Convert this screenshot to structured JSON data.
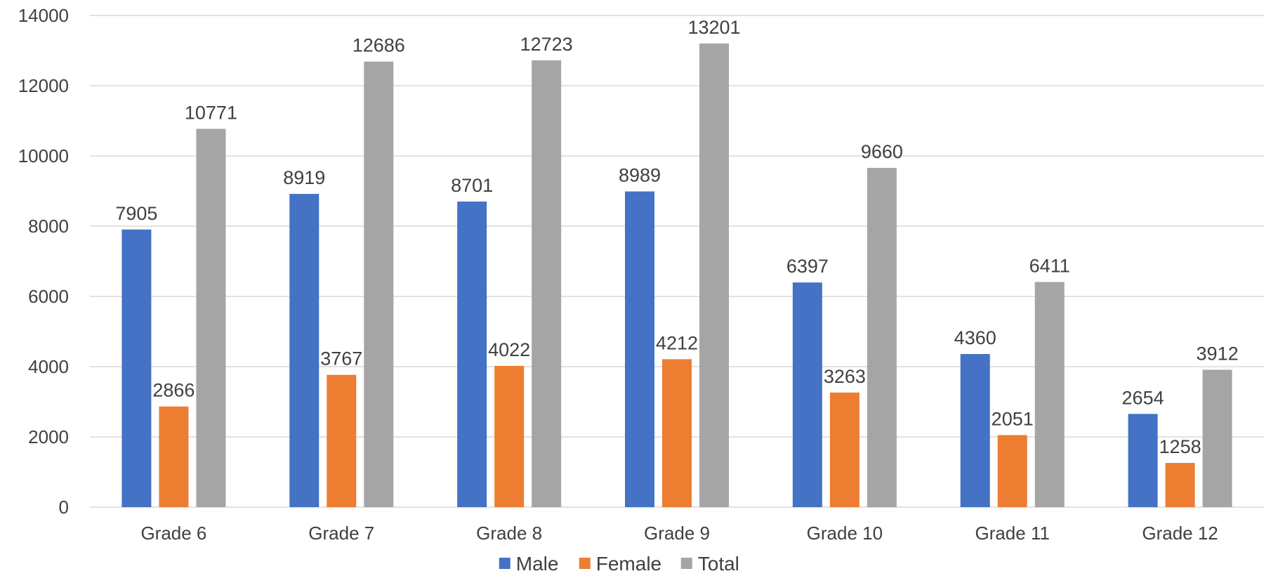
{
  "chart_data": {
    "type": "bar",
    "categories": [
      "Grade 6",
      "Grade 7",
      "Grade 8",
      "Grade 9",
      "Grade 10",
      "Grade 11",
      "Grade 12"
    ],
    "series": [
      {
        "name": "Male",
        "color": "#4472c4",
        "values": [
          7905,
          8919,
          8701,
          8989,
          6397,
          4360,
          2654
        ]
      },
      {
        "name": "Female",
        "color": "#ed7d31",
        "values": [
          2866,
          3767,
          4022,
          4212,
          3263,
          2051,
          1258
        ]
      },
      {
        "name": "Total",
        "color": "#a5a5a5",
        "values": [
          10771,
          12686,
          12723,
          13201,
          9660,
          6411,
          3912
        ]
      }
    ],
    "title": "",
    "xlabel": "",
    "ylabel": "",
    "ylim": [
      0,
      14000
    ],
    "yticks": [
      0,
      2000,
      4000,
      6000,
      8000,
      10000,
      12000,
      14000
    ],
    "grid": true,
    "legend_position": "bottom",
    "data_labels": true
  }
}
